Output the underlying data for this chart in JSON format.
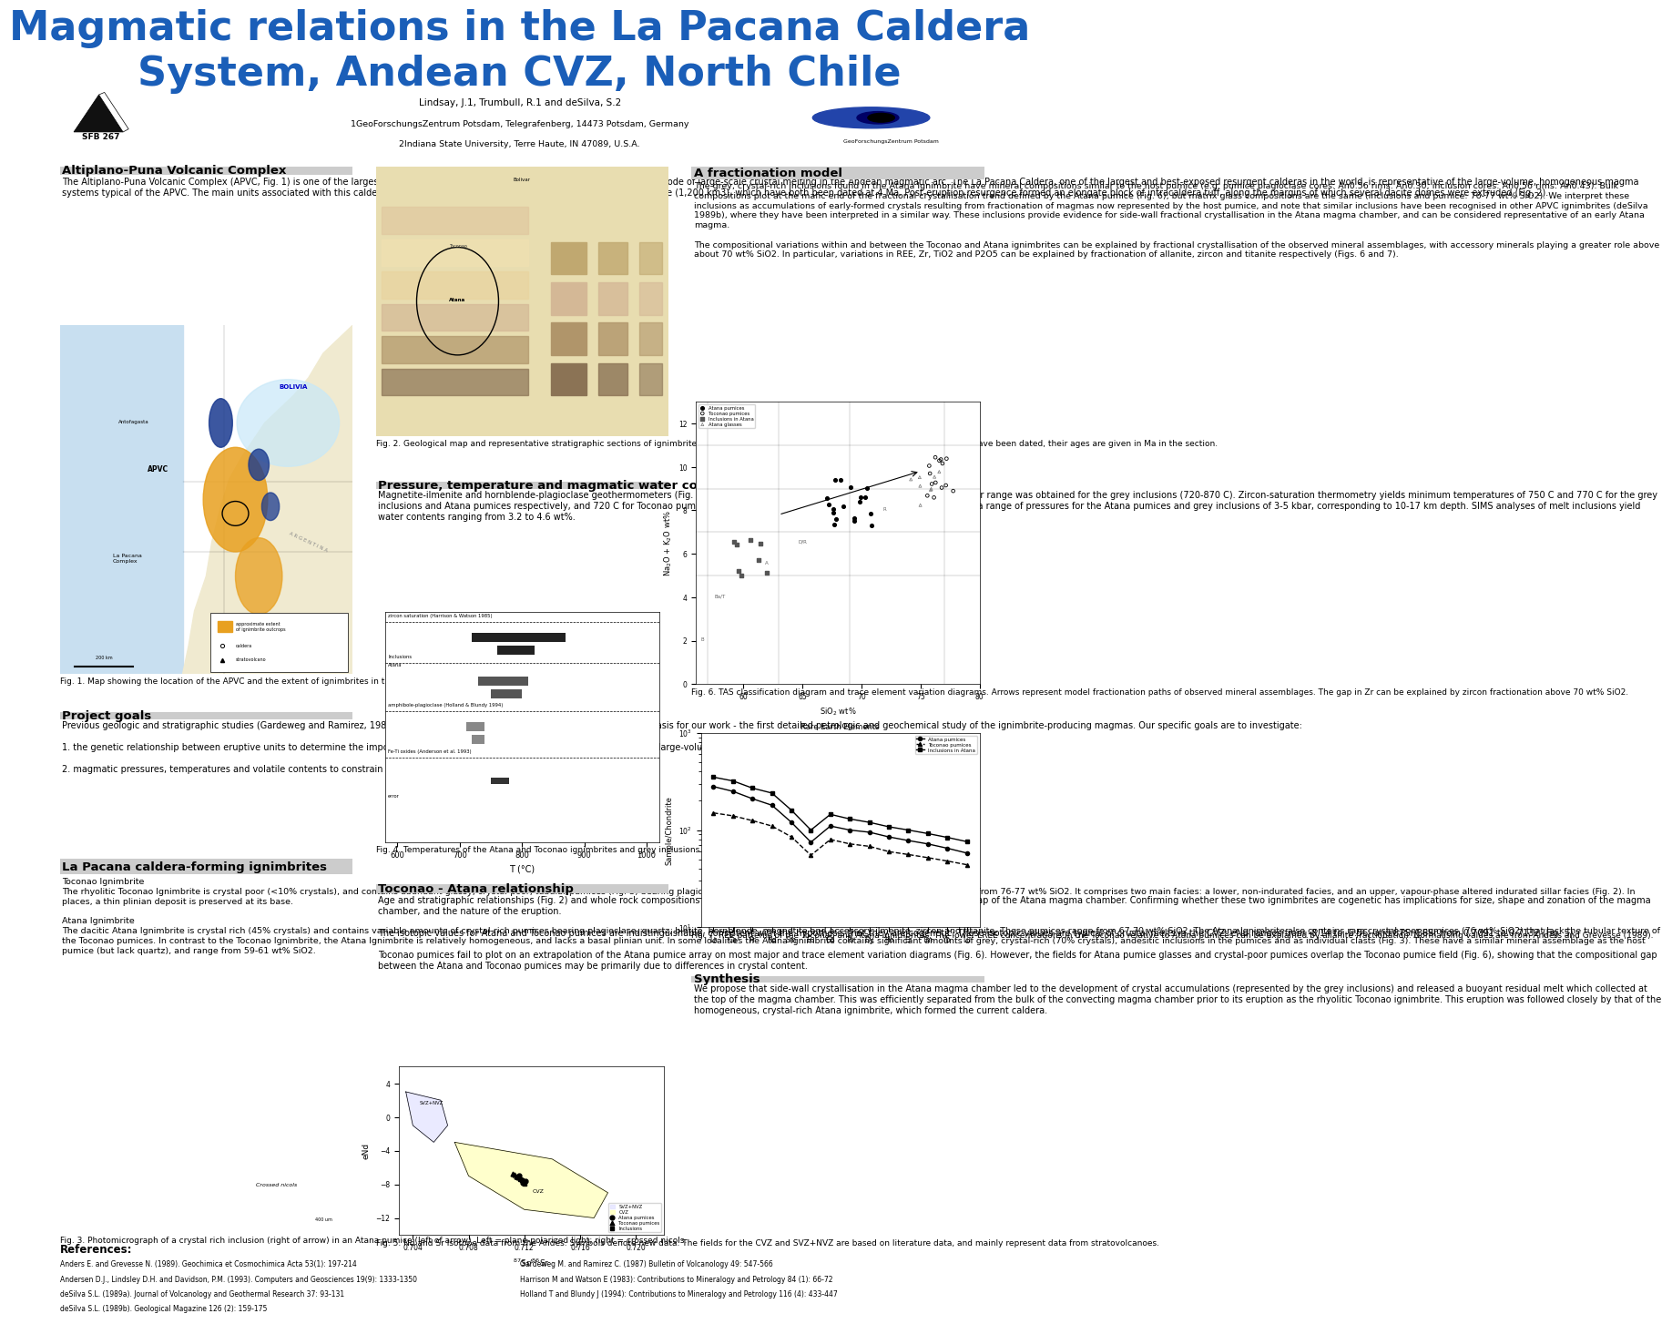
{
  "title_line1": "Magmatic relations in the La Pacana Caldera",
  "title_line2": "System, Andean CVZ, North Chile",
  "title_color": "#1a5eb8",
  "title_fontsize": 32,
  "background_color": "#ffffff",
  "authors": "Lindsay, J.1, Trumbull, R.1 and deSilva, S.2",
  "affil1": "1GeoForschungsZentrum Potsdam, Telegrafenberg, 14473 Potsdam, Germany",
  "affil2": "2Indiana State University, Terre Haute, IN 47089, U.S.A.",
  "sfb_label": "SFB 267",
  "body_fontsize": 7.5,
  "section_title_fontsize": 10,
  "col1_sec0_title": "Altiplano-Puna Volcanic Complex",
  "col1_sec0_body": "The Altiplano-Puna Volcanic Complex (APVC, Fig. 1) is one of the largest Neogene ignimbrite provinces on Earth, and represents an episode of large-scale crustal melting in the Andean magmatic arc. The La Pacana Caldera, one of the largest and best-exposed resurgent calderas in the world, is representative of the large-volume, homogeneous magma systems typical of the APVC. The main units associated with this caldera are the Toconao Ignimbrite (500 km3) and the Atana Ignimbrite (1,200 km3), which have both been dated at 4 Ma. Post-eruption resurgence formed an elongate block of intracaldera tuff, along the margins of which several dacite domes were extruded (Fig. 2).",
  "col1_sec1_title": "Project goals",
  "col1_sec1_body": "Previous geologic and stratigraphic studies (Gardeweg and Ramirez, 1987; deSilva, 1989a) of the La Pacana caldera provide a solid basis for our work - the first detailed petrologic and geochemical study of the ignimbrite-producing magmas. Our specific goals are to investigate:\n\n1. the genetic relationship between eruptive units to determine the importance of fractionation, assimilation, recharge and zoning in large-volume magma chambers, and\n\n2. magmatic pressures, temperatures and volatile contents to constrain conditions of melt generation and evolution.",
  "col1_sec2_title": "La Pacana caldera-forming ignimbrites",
  "col1_sec2_body": "Toconao Ignimbrite\nThe rhyolitic Toconao Ignimbrite is crystal poor (<10% crystals), and contains abundant glassy, crystal-poor, tubular pumices (Fig. 3) bearing plagioclase, sanidine, quartz and biotite, which range in composition from 76-77 wt% SiO2. It comprises two main facies: a lower, non-indurated facies, and an upper, vapour-phase altered indurated sillar facies (Fig. 2). In places, a thin plinian deposit is preserved at its base.\n\nAtana Ignimbrite\nThe dacitic Atana Ignimbrite is crystal rich (45% crystals) and contains variable amounts of crystal-rich pumices bearing plagioclase, quartz, biotite, hornblende, magnetite and accessory ilmenite, zircon and titanite. These pumices range from 67-70 wt% SiO2. The Atana Ignimbrite also contains rare crystal-poor pumices (76 wt% SiO2) that lack the tubular texture of the Toconao pumices. In contrast to the Toconao Ignimbrite, the Atana Ignimbrite is relatively homogeneous, and lacks a basal plinian unit. In some localities the Atana Ignimbrite contains significant amounts of grey, crystal-rich (70% crystals), andesitic inclusions in the pumices and as individual clasts (Fig. 3). These have a similar mineral assemblage as the host pumice (but lack quartz), and range from 59-61 wt% SiO2.",
  "col2_sec0_title": "Pressure, temperature and magmatic water contents",
  "col2_sec0_body": "Magnetite-ilmenite and hornblende-plagioclase geothermometers (Fig. 4) yield temperatures of 730-810 C for Atana pumices. A greater range was obtained for the grey inclusions (720-870 C). Zircon-saturation thermometry yields minimum temperatures of 750 C and 770 C for the grey inclusions and Atana pumices respectively, and 720 C for Toconao pumices. Preliminary results from Al in hornblende barometry yield a range of pressures for the Atana pumices and grey inclusions of 3-5 kbar, corresponding to 10-17 km depth. SIMS analyses of melt inclusions yield water contents ranging from 3.2 to 4.6 wt%.",
  "col2_sec1_title": "Toconao - Atana relationship",
  "col2_sec1_body": "Age and stratigraphic relationships (Fig. 2) and whole rock compositions suggest that the Toconao Ignimbrite represents the evolved cap of the Atana magma chamber. Confirming whether these two ignimbrites are cogenetic has implications for size, shape and zonation of the magma chamber, and the nature of the eruption.\n\nThe isotopic values for Atana and Toconao pumices are indistinguishable, consistent with the hypothesis that they are cogenetic. These isotopic values are typical of crustal melts in the CVZ: eNd ranges from -8.14 to -6.56; and 87Sr/86Sr from 0.7091 to 0.7132 (Fig. 5).\n\nToconao pumices fail to plot on an extrapolation of the Atana pumice array on most major and trace element variation diagrams (Fig. 6). However, the fields for Atana pumice glasses and crystal-poor pumices overlap the Toconao pumice field (Fig. 6), showing that the compositional gap between the Atana and Toconao pumices may be primarily due to differences in crystal content.",
  "col3_sec0_title": "A fractionation model",
  "col3_sec0_body": "The grey, crystal-rich inclusions found in the Atana Ignimbrite have mineral compositions similar to the host pumice (e.g. pumice plagioclase cores: An0.56 rims: An0.30; inclusion cores: An0.56 rims: An0.43). Bulk compositions plot at the mafic end of the fractional crystallisation trend defined by the Atana pumice (Fig. 6), but matrix glass compositions are the same (inclusions and pumice: 76-77 wt% SiO2). We interpret these inclusions as accumulations of early-formed crystals resulting from fractionation of magmas now represented by the host pumice, and note that similar inclusions have been recognised in other APVC ignimbrites (deSilva 1989b), where they have been interpreted in a similar way. These inclusions provide evidence for side-wall fractional crystallisation in the Atana magma chamber, and can be considered representative of an early Atana magma.\n\nThe compositional variations within and between the Toconao and Atana ignimbrites can be explained by fractional crystallisation of the observed mineral assemblages, with accessory minerals playing a greater role above about 70 wt% SiO2. In particular, variations in REE, Zr, TiO2 and P2O5 can be explained by fractionation of allanite, zircon and titanite respectively (Figs. 6 and 7).",
  "col3_sec1_title": "Synthesis",
  "col3_sec1_body": "We propose that side-wall crystallisation in the Atana magma chamber led to the development of crystal accumulations (represented by the grey inclusions) and released a buoyant residual melt which collected at the top of the magma chamber. This was efficiently separated from the bulk of the convecting magma chamber prior to its eruption as the rhyolitic Toconao ignimbrite. This eruption was followed closely by that of the homogeneous, crystal-rich Atana ignimbrite, which formed the current caldera.",
  "references_title": "References:",
  "references": [
    "Anders E. and Grevesse N. (1989). Geochimica et Cosmochimica Acta 53(1): 197-214",
    "Andersen D.J., Lindsley D.H. and Davidson, P.M. (1993). Computers and Geosciences 19(9): 1333-1350",
    "deSilva S.L. (1989a). Journal of Volcanology and Geothermal Research 37: 93-131",
    "deSilva S.L. (1989b). Geological Magazine 126 (2): 159-175",
    "Gardeweg M. and Ramirez C. (1987) Bulletin of Volcanology 49: 547-566",
    "Harrison M and Watson E (1983): Contributions to Mineralogy and Petrology 84 (1): 66-72",
    "Holland T and Blundy J (1994): Contributions to Mineralogy and Petrology 116 (4): 433-447"
  ],
  "fig1_caption": "Fig. 1. Map showing the location of the APVC and the extent of ignimbrites in the CVZ.",
  "fig2_caption": "Fig. 2. Geological map and representative stratigraphic sections of ignimbrites in the La Pacana region. Where samples from particular sections have been dated, their ages are given in Ma in the section.",
  "fig3_caption": "Fig. 3. Photomicrograph of a crystal rich inclusion (right of arrow) in an Atana pumice (left of arrow). Left = plane-polarized light; right = crossed nicols.",
  "fig4_caption": "Fig. 4. Temperatures of the Atana and Toconao ignimbrites and grey inclusions derived by different geothermometers.",
  "fig5_caption": "Fig. 5. Nd and Sr isotope data from the Andes. Symbols denote new data. The fields for the CVZ and SVZ+NVZ are based on literature data, and mainly represent data from stratovolcanoes.",
  "fig6_caption": "Fig. 6. TAS classification diagram and trace element variation diagrams. Arrows represent model fractionation paths of observed mineral assemblages. The gap in Zr can be explained by zircon fractionation above 70 wt% SiO2.",
  "fig7_caption": "Fig. 7. REE patterns of the Toconao and Atana ignimbrites. The lower LREE concentrations in the Toconao relative to Atana pumices can be explained by allanite fractionation. Normalising values are from Anders and Grevesse (1989)."
}
